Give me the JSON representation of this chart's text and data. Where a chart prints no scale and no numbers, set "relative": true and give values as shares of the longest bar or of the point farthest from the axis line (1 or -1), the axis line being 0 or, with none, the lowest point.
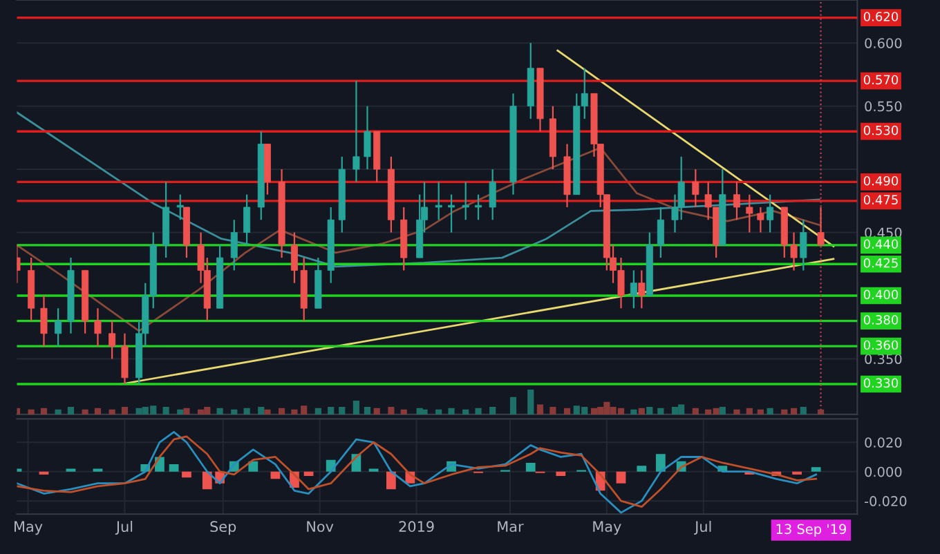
{
  "chart_data": [
    {
      "type": "candlestick",
      "tick_labels": "y",
      "grid": true,
      "x": [
        "2018-04-24",
        "2018-05-03",
        "2018-05-11",
        "2018-05-20",
        "2018-05-28",
        "2018-06-06",
        "2018-06-14",
        "2018-06-23",
        "2018-07-01",
        "2018-07-10",
        "2018-07-14",
        "2018-07-19",
        "2018-07-27",
        "2018-08-05",
        "2018-08-09",
        "2018-08-18",
        "2018-08-22",
        "2018-08-30",
        "2018-09-08",
        "2018-09-16",
        "2018-09-25",
        "2018-09-29",
        "2018-10-08",
        "2018-10-16",
        "2018-10-22",
        "2018-10-31",
        "2018-11-08",
        "2018-11-15",
        "2018-11-24",
        "2018-12-01",
        "2018-12-07",
        "2018-12-16",
        "2018-12-24",
        "2019-01-03",
        "2019-01-06",
        "2019-01-15",
        "2019-01-23",
        "2019-02-01",
        "2019-02-09",
        "2019-02-18",
        "2019-03-03",
        "2019-03-14",
        "2019-03-20",
        "2019-03-28",
        "2019-04-06",
        "2019-04-12",
        "2019-04-17",
        "2019-04-23",
        "2019-04-27",
        "2019-05-01",
        "2019-05-05",
        "2019-05-10",
        "2019-05-18",
        "2019-05-23",
        "2019-05-28",
        "2019-06-04",
        "2019-06-13",
        "2019-06-17",
        "2019-06-26",
        "2019-07-04",
        "2019-07-09",
        "2019-07-13",
        "2019-07-22",
        "2019-07-30",
        "2019-08-06",
        "2019-08-12",
        "2019-08-21",
        "2019-08-27",
        "2019-09-02",
        "2019-09-13"
      ],
      "ohlc": [
        [
          0.43,
          0.44,
          0.41,
          0.42
        ],
        [
          0.42,
          0.43,
          0.38,
          0.39
        ],
        [
          0.39,
          0.4,
          0.36,
          0.37
        ],
        [
          0.37,
          0.39,
          0.36,
          0.38
        ],
        [
          0.38,
          0.43,
          0.37,
          0.42
        ],
        [
          0.42,
          0.42,
          0.37,
          0.38
        ],
        [
          0.38,
          0.39,
          0.36,
          0.37
        ],
        [
          0.37,
          0.38,
          0.35,
          0.36
        ],
        [
          0.36,
          0.37,
          0.33,
          0.335
        ],
        [
          0.335,
          0.38,
          0.33,
          0.37
        ],
        [
          0.37,
          0.41,
          0.36,
          0.4
        ],
        [
          0.4,
          0.45,
          0.39,
          0.44
        ],
        [
          0.44,
          0.49,
          0.43,
          0.47
        ],
        [
          0.47,
          0.48,
          0.46,
          0.47
        ],
        [
          0.47,
          0.47,
          0.43,
          0.44
        ],
        [
          0.44,
          0.45,
          0.41,
          0.42
        ],
        [
          0.42,
          0.43,
          0.38,
          0.39
        ],
        [
          0.39,
          0.44,
          0.39,
          0.43
        ],
        [
          0.43,
          0.46,
          0.42,
          0.45
        ],
        [
          0.45,
          0.48,
          0.44,
          0.47
        ],
        [
          0.47,
          0.53,
          0.46,
          0.52
        ],
        [
          0.52,
          0.52,
          0.48,
          0.49
        ],
        [
          0.49,
          0.5,
          0.43,
          0.44
        ],
        [
          0.44,
          0.45,
          0.41,
          0.42
        ],
        [
          0.42,
          0.43,
          0.38,
          0.39
        ],
        [
          0.39,
          0.43,
          0.39,
          0.42
        ],
        [
          0.42,
          0.47,
          0.41,
          0.46
        ],
        [
          0.46,
          0.51,
          0.45,
          0.5
        ],
        [
          0.5,
          0.57,
          0.49,
          0.51
        ],
        [
          0.51,
          0.55,
          0.5,
          0.53
        ],
        [
          0.53,
          0.53,
          0.49,
          0.5
        ],
        [
          0.5,
          0.51,
          0.45,
          0.46
        ],
        [
          0.46,
          0.47,
          0.42,
          0.43
        ],
        [
          0.43,
          0.48,
          0.43,
          0.46
        ],
        [
          0.46,
          0.49,
          0.45,
          0.47
        ],
        [
          0.47,
          0.49,
          0.46,
          0.47
        ],
        [
          0.47,
          0.48,
          0.45,
          0.47
        ],
        [
          0.47,
          0.49,
          0.46,
          0.47
        ],
        [
          0.47,
          0.48,
          0.46,
          0.47
        ],
        [
          0.47,
          0.5,
          0.46,
          0.49
        ],
        [
          0.49,
          0.56,
          0.48,
          0.55
        ],
        [
          0.55,
          0.6,
          0.54,
          0.58
        ],
        [
          0.58,
          0.58,
          0.53,
          0.54
        ],
        [
          0.54,
          0.55,
          0.5,
          0.51
        ],
        [
          0.51,
          0.52,
          0.47,
          0.48
        ],
        [
          0.48,
          0.56,
          0.48,
          0.55
        ],
        [
          0.55,
          0.58,
          0.54,
          0.56
        ],
        [
          0.56,
          0.56,
          0.51,
          0.52
        ],
        [
          0.52,
          0.52,
          0.47,
          0.48
        ],
        [
          0.48,
          0.48,
          0.42,
          0.43
        ],
        [
          0.43,
          0.44,
          0.41,
          0.42
        ],
        [
          0.42,
          0.43,
          0.39,
          0.4
        ],
        [
          0.4,
          0.42,
          0.39,
          0.41
        ],
        [
          0.41,
          0.42,
          0.39,
          0.4
        ],
        [
          0.4,
          0.45,
          0.4,
          0.44
        ],
        [
          0.44,
          0.47,
          0.43,
          0.46
        ],
        [
          0.46,
          0.48,
          0.45,
          0.47
        ],
        [
          0.47,
          0.51,
          0.46,
          0.49
        ],
        [
          0.49,
          0.5,
          0.47,
          0.48
        ],
        [
          0.48,
          0.49,
          0.46,
          0.47
        ],
        [
          0.47,
          0.47,
          0.43,
          0.44
        ],
        [
          0.44,
          0.5,
          0.44,
          0.48
        ],
        [
          0.48,
          0.49,
          0.46,
          0.47
        ],
        [
          0.47,
          0.48,
          0.45,
          0.465
        ],
        [
          0.465,
          0.47,
          0.45,
          0.46
        ],
        [
          0.46,
          0.48,
          0.45,
          0.47
        ],
        [
          0.47,
          0.47,
          0.43,
          0.44
        ],
        [
          0.44,
          0.45,
          0.42,
          0.43
        ],
        [
          0.43,
          0.46,
          0.42,
          0.45
        ],
        [
          0.45,
          0.47,
          0.44,
          0.44
        ]
      ],
      "series": [
        {
          "type": "line",
          "color": "#3a8f9a",
          "x": [
            "2018-04-24",
            "2018-07-19",
            "2018-08-31",
            "2018-10-13",
            "2018-11-11",
            "2019-01-06",
            "2019-02-24",
            "2019-03-24",
            "2019-04-21",
            "2019-05-20",
            "2019-07-16",
            "2019-09-12"
          ],
          "values": [
            0.545,
            0.473,
            0.445,
            0.434,
            0.423,
            0.426,
            0.43,
            0.445,
            0.467,
            0.468,
            0.472,
            0.476
          ]
        },
        {
          "type": "line",
          "color": "#8a4a3a",
          "x": [
            "2018-04-24",
            "2018-05-22",
            "2018-07-10",
            "2018-08-17",
            "2018-09-15",
            "2018-10-07",
            "2018-11-11",
            "2018-12-10",
            "2019-01-06",
            "2019-01-25",
            "2019-03-09",
            "2019-04-27",
            "2019-05-20",
            "2019-06-17",
            "2019-07-16",
            "2019-08-14",
            "2019-09-12"
          ],
          "values": [
            0.44,
            0.416,
            0.372,
            0.405,
            0.434,
            0.452,
            0.434,
            0.441,
            0.452,
            0.467,
            0.492,
            0.517,
            0.481,
            0.467,
            0.459,
            0.467,
            0.456
          ]
        },
        {
          "type": "line",
          "color": "#e8d870",
          "x": [
            "2019-03-31",
            "2019-09-21"
          ],
          "values": [
            0.594,
            0.439
          ]
        },
        {
          "type": "line",
          "color": "#e8d870",
          "x": [
            "2018-06-29",
            "2019-09-21"
          ],
          "values": [
            0.33,
            0.429
          ]
        }
      ],
      "ref_lines": [
        {
          "axis": "y",
          "value": 0.62,
          "label": "0.620",
          "color": "#e01e1e"
        },
        {
          "axis": "y",
          "value": 0.57,
          "label": "0.570",
          "color": "#e01e1e"
        },
        {
          "axis": "y",
          "value": 0.53,
          "label": "0.530",
          "color": "#e01e1e"
        },
        {
          "axis": "y",
          "value": 0.49,
          "label": "0.490",
          "color": "#e01e1e"
        },
        {
          "axis": "y",
          "value": 0.475,
          "label": "0.475",
          "color": "#e01e1e"
        },
        {
          "axis": "y",
          "value": 0.44,
          "label": "0.440",
          "color": "#22d422"
        },
        {
          "axis": "y",
          "value": 0.425,
          "label": "0.425",
          "color": "#22d422"
        },
        {
          "axis": "y",
          "value": 0.4,
          "label": "0.400",
          "color": "#22d422"
        },
        {
          "axis": "y",
          "value": 0.38,
          "label": "0.380",
          "color": "#22d422"
        },
        {
          "axis": "y",
          "value": 0.36,
          "label": "0.360",
          "color": "#22d422"
        },
        {
          "axis": "y",
          "value": 0.33,
          "label": "0.330",
          "color": "#22d422"
        },
        {
          "axis": "x",
          "value": "2019-09-13",
          "color": "#c04050",
          "line_style": "dotted"
        }
      ],
      "xlim": [
        "2018-04-24",
        "2019-10-06"
      ],
      "ylim": [
        0.306,
        0.634
      ],
      "yticks": [
        {
          "value": 0.35,
          "label": "0.350"
        },
        {
          "value": 0.45,
          "label": "0.450"
        },
        {
          "value": 0.5,
          "label": null
        },
        {
          "value": 0.55,
          "label": "0.550"
        },
        {
          "value": 0.6,
          "label": "0.600"
        }
      ]
    },
    {
      "type": "bar",
      "relative": true,
      "tick_labels": false,
      "x": [
        "2018-04-24",
        "2018-05-03",
        "2018-05-11",
        "2018-05-20",
        "2018-05-28",
        "2018-06-06",
        "2018-06-14",
        "2018-06-23",
        "2018-07-01",
        "2018-07-10",
        "2018-07-14",
        "2018-07-19",
        "2018-07-27",
        "2018-08-05",
        "2018-08-09",
        "2018-08-18",
        "2018-08-22",
        "2018-08-30",
        "2018-09-08",
        "2018-09-16",
        "2018-09-25",
        "2018-09-29",
        "2018-10-08",
        "2018-10-16",
        "2018-10-22",
        "2018-10-31",
        "2018-11-08",
        "2018-11-15",
        "2018-11-24",
        "2018-12-01",
        "2018-12-07",
        "2018-12-16",
        "2018-12-24",
        "2019-01-03",
        "2019-01-06",
        "2019-01-15",
        "2019-01-23",
        "2019-02-01",
        "2019-02-09",
        "2019-02-18",
        "2019-03-03",
        "2019-03-14",
        "2019-03-20",
        "2019-03-28",
        "2019-04-06",
        "2019-04-12",
        "2019-04-17",
        "2019-04-23",
        "2019-04-27",
        "2019-05-01",
        "2019-05-05",
        "2019-05-10",
        "2019-05-18",
        "2019-05-23",
        "2019-05-28",
        "2019-06-04",
        "2019-06-13",
        "2019-06-17",
        "2019-06-26",
        "2019-07-04",
        "2019-07-09",
        "2019-07-13",
        "2019-07-22",
        "2019-07-30",
        "2019-08-06",
        "2019-08-12",
        "2019-08-21",
        "2019-08-27",
        "2019-09-02",
        "2019-09-13"
      ],
      "values": [
        0.25,
        0.2,
        0.25,
        0.2,
        0.3,
        0.2,
        0.25,
        0.2,
        0.3,
        0.25,
        0.3,
        0.35,
        0.3,
        0.2,
        0.25,
        0.2,
        0.3,
        0.25,
        0.2,
        0.25,
        0.3,
        0.2,
        0.25,
        0.2,
        0.35,
        0.25,
        0.3,
        0.3,
        0.55,
        0.3,
        0.25,
        0.3,
        0.2,
        0.25,
        0.2,
        0.2,
        0.25,
        0.2,
        0.25,
        0.3,
        0.7,
        1.0,
        0.4,
        0.3,
        0.25,
        0.35,
        0.3,
        0.25,
        0.3,
        0.5,
        0.3,
        0.25,
        0.2,
        0.25,
        0.3,
        0.25,
        0.3,
        0.4,
        0.25,
        0.2,
        0.25,
        0.3,
        0.2,
        0.25,
        0.2,
        0.25,
        0.2,
        0.25,
        0.3,
        0.2
      ],
      "colors": [
        "#8b3a3a",
        "#8b3a3a",
        "#8b3a3a",
        "#1e6f68",
        "#1e6f68",
        "#8b3a3a",
        "#8b3a3a",
        "#8b3a3a",
        "#8b3a3a",
        "#1e6f68",
        "#1e6f68",
        "#1e6f68",
        "#1e6f68",
        "#1e6f68",
        "#8b3a3a",
        "#8b3a3a",
        "#8b3a3a",
        "#1e6f68",
        "#1e6f68",
        "#1e6f68",
        "#1e6f68",
        "#8b3a3a",
        "#8b3a3a",
        "#8b3a3a",
        "#8b3a3a",
        "#1e6f68",
        "#1e6f68",
        "#1e6f68",
        "#1e6f68",
        "#1e6f68",
        "#8b3a3a",
        "#8b3a3a",
        "#8b3a3a",
        "#1e6f68",
        "#1e6f68",
        "#1e6f68",
        "#1e6f68",
        "#1e6f68",
        "#1e6f68",
        "#1e6f68",
        "#1e6f68",
        "#1e6f68",
        "#8b3a3a",
        "#8b3a3a",
        "#8b3a3a",
        "#1e6f68",
        "#1e6f68",
        "#8b3a3a",
        "#8b3a3a",
        "#8b3a3a",
        "#8b3a3a",
        "#8b3a3a",
        "#1e6f68",
        "#8b3a3a",
        "#1e6f68",
        "#1e6f68",
        "#1e6f68",
        "#1e6f68",
        "#8b3a3a",
        "#8b3a3a",
        "#8b3a3a",
        "#1e6f68",
        "#8b3a3a",
        "#8b3a3a",
        "#8b3a3a",
        "#1e6f68",
        "#8b3a3a",
        "#8b3a3a",
        "#1e6f68",
        "#8b3a3a"
      ],
      "xlim": [
        "2018-04-24",
        "2019-10-06"
      ]
    },
    {
      "type": "line",
      "grid": true,
      "xlim": [
        "2018-04-24",
        "2019-10-06"
      ],
      "ylim": [
        -0.029,
        0.036
      ],
      "yticks": [
        {
          "value": -0.02,
          "label": "-0.020"
        },
        {
          "value": 0.0,
          "label": "0.000"
        },
        {
          "value": 0.02,
          "label": "0.020"
        }
      ],
      "xticks": [
        {
          "value": "2018-05-01",
          "label": "May"
        },
        {
          "value": "2018-07-01",
          "label": "Jul"
        },
        {
          "value": "2018-09-01",
          "label": "Sep"
        },
        {
          "value": "2018-11-01",
          "label": "Nov"
        },
        {
          "value": "2019-01-01",
          "label": "2019"
        },
        {
          "value": "2019-03-01",
          "label": "Mar"
        },
        {
          "value": "2019-05-01",
          "label": "May"
        },
        {
          "value": "2019-07-01",
          "label": "Jul"
        }
      ],
      "annotations": [
        "13 Sep '19"
      ],
      "x": [
        "2018-04-24",
        "2018-05-11",
        "2018-05-28",
        "2018-06-14",
        "2018-07-01",
        "2018-07-14",
        "2018-07-23",
        "2018-08-01",
        "2018-08-09",
        "2018-08-22",
        "2018-08-30",
        "2018-09-08",
        "2018-09-20",
        "2018-10-04",
        "2018-10-16",
        "2018-10-25",
        "2018-11-08",
        "2018-11-24",
        "2018-12-05",
        "2018-12-16",
        "2018-12-28",
        "2019-01-06",
        "2019-01-23",
        "2019-02-09",
        "2019-02-26",
        "2019-03-14",
        "2019-03-20",
        "2019-04-02",
        "2019-04-15",
        "2019-04-27",
        "2019-05-10",
        "2019-05-23",
        "2019-06-04",
        "2019-06-17",
        "2019-06-30",
        "2019-07-13",
        "2019-07-30",
        "2019-08-16",
        "2019-08-29",
        "2019-09-10"
      ],
      "series": [
        {
          "type": "bar",
          "values": [
            0.002,
            -0.002,
            0.002,
            0.002,
            0.0,
            0.005,
            0.01,
            0.005,
            -0.004,
            -0.012,
            -0.008,
            0.007,
            0.007,
            -0.005,
            -0.011,
            -0.003,
            0.008,
            0.012,
            0.002,
            -0.012,
            -0.008,
            0.0,
            0.007,
            -0.001,
            0.001,
            0.006,
            -0.001,
            -0.003,
            0.001,
            -0.013,
            -0.008,
            0.004,
            0.012,
            0.007,
            0.0,
            0.004,
            -0.002,
            -0.003,
            -0.002,
            0.003
          ],
          "colors": [
            "#26a69a",
            "#ef5350",
            "#26a69a",
            "#26a69a",
            "#26a69a",
            "#26a69a",
            "#26a69a",
            "#26a69a",
            "#ef5350",
            "#ef5350",
            "#ef5350",
            "#26a69a",
            "#26a69a",
            "#ef5350",
            "#ef5350",
            "#ef5350",
            "#26a69a",
            "#26a69a",
            "#26a69a",
            "#ef5350",
            "#ef5350",
            "#26a69a",
            "#26a69a",
            "#ef5350",
            "#26a69a",
            "#26a69a",
            "#ef5350",
            "#ef5350",
            "#26a69a",
            "#ef5350",
            "#ef5350",
            "#26a69a",
            "#26a69a",
            "#26a69a",
            "#26a69a",
            "#26a69a",
            "#ef5350",
            "#ef5350",
            "#ef5350",
            "#26a69a"
          ]
        },
        {
          "type": "line",
          "color": "#2a8fbf",
          "values": [
            -0.008,
            -0.015,
            -0.012,
            -0.008,
            -0.008,
            0.0,
            0.02,
            0.027,
            0.02,
            0.0,
            -0.008,
            0.005,
            0.015,
            0.005,
            -0.013,
            -0.015,
            0.0,
            0.022,
            0.02,
            0.0,
            -0.01,
            -0.008,
            0.005,
            0.002,
            0.005,
            0.018,
            0.015,
            0.01,
            0.012,
            -0.015,
            -0.028,
            -0.02,
            0.0,
            0.01,
            0.01,
            0.0,
            0.0,
            -0.005,
            -0.008,
            -0.002
          ]
        },
        {
          "type": "line",
          "color": "#c0502a",
          "values": [
            -0.01,
            -0.013,
            -0.014,
            -0.01,
            -0.008,
            -0.005,
            0.01,
            0.022,
            0.024,
            0.012,
            0.0,
            -0.002,
            0.008,
            0.01,
            -0.002,
            -0.012,
            -0.008,
            0.01,
            0.02,
            0.012,
            -0.002,
            -0.008,
            -0.002,
            0.003,
            0.004,
            0.012,
            0.016,
            0.013,
            0.011,
            -0.002,
            -0.02,
            -0.024,
            -0.012,
            0.003,
            0.01,
            0.006,
            0.002,
            -0.002,
            -0.006,
            -0.005
          ]
        }
      ]
    }
  ]
}
